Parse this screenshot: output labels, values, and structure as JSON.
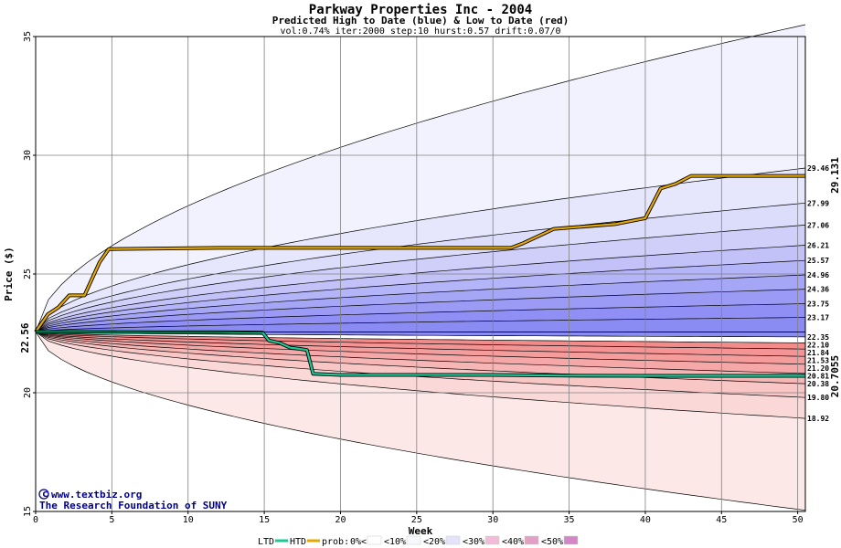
{
  "chart_data": {
    "type": "area",
    "title": "Parkway Properties Inc - 2004",
    "subtitle": "Predicted High to Date (blue) &  Low to Date (red)",
    "params": "vol:0.74% iter:2000 step:10 hurst:0.57 drift:0.07/0",
    "xlabel": "Week",
    "ylabel": "Price ($)",
    "xlim": [
      0,
      50.5
    ],
    "ylim": [
      15,
      35
    ],
    "x_ticks": [
      0,
      5,
      10,
      15,
      20,
      25,
      30,
      35,
      40,
      45,
      50
    ],
    "y_ticks": [
      15,
      20,
      25,
      30,
      35
    ],
    "start_price": 22.56,
    "start_label": "22.56",
    "high_bands_end": [
      22.35,
      23.17,
      23.75,
      24.36,
      24.96,
      25.57,
      26.21,
      27.06,
      27.99,
      29.46,
      35.5
    ],
    "low_bands_end": [
      22.1,
      21.84,
      21.53,
      21.2,
      20.81,
      20.38,
      19.8,
      18.92,
      15.05
    ],
    "right_labels": [
      "29.46",
      "27.99",
      "27.06",
      "26.21",
      "25.57",
      "24.96",
      "24.36",
      "23.75",
      "23.17",
      "22.35",
      "22.10",
      "21.84",
      "21.53",
      "21.20",
      "20.81",
      "20.38",
      "19.80",
      "18.92"
    ],
    "htd_series": {
      "name": "HTD",
      "end_label": "29.131",
      "x": [
        0,
        0.8,
        1.5,
        2.2,
        3.2,
        4.2,
        4.8,
        12,
        22,
        31.2,
        32,
        33,
        34,
        35,
        38,
        40,
        41,
        42,
        43,
        50.5
      ],
      "y": [
        22.56,
        23.3,
        23.6,
        24.1,
        24.1,
        25.5,
        26.05,
        26.1,
        26.1,
        26.1,
        26.3,
        26.6,
        26.9,
        26.95,
        27.1,
        27.35,
        28.6,
        28.8,
        29.13,
        29.13
      ]
    },
    "ltd_series": {
      "name": "LTD",
      "end_label": "20.7055",
      "x": [
        0,
        3,
        8,
        12,
        14.9,
        15.3,
        16,
        16.7,
        17.3,
        17.8,
        18.2,
        20,
        25,
        30,
        35,
        40,
        45,
        50.5
      ],
      "y": [
        22.56,
        22.56,
        22.55,
        22.55,
        22.53,
        22.2,
        22.1,
        21.9,
        21.85,
        21.8,
        20.8,
        20.75,
        20.75,
        20.75,
        20.72,
        20.71,
        20.71,
        20.71
      ]
    },
    "legend": {
      "ltd": "LTD",
      "htd": "HTD",
      "prob_prefix": "prob:",
      "items": [
        "0%<",
        "<10%",
        "<20%",
        "<30%",
        "<40%",
        "<50%"
      ]
    },
    "colors": {
      "htd_line": "#e6a800",
      "ltd_line": "#1ec896",
      "high_bands": [
        "#8b8bf4",
        "#8f8ff5",
        "#9b9bf6",
        "#a6a6f7",
        "#b4b4f8",
        "#c2c2f9",
        "#cfcffa",
        "#dcdcfb",
        "#e6e6fc",
        "#f2f2fe"
      ],
      "low_bands": [
        "#f48b8b",
        "#f49494",
        "#f59d9d",
        "#f6a8a8",
        "#f7b6b6",
        "#f9c6c6",
        "#fbd8d8",
        "#fde8e8"
      ],
      "legend_swatches": [
        "#ffffff",
        "#f7f7fe",
        "#e3e3fb",
        "#f0bcd8",
        "#e1a0c4",
        "#d387c7"
      ],
      "grid": "#808080",
      "start_label": "#000000",
      "htd_label": "#8b6b00",
      "ltd_label": "#1a9e70"
    }
  },
  "credits": {
    "site": "www.textbiz.org",
    "org": "The Research Foundation of SUNY"
  }
}
